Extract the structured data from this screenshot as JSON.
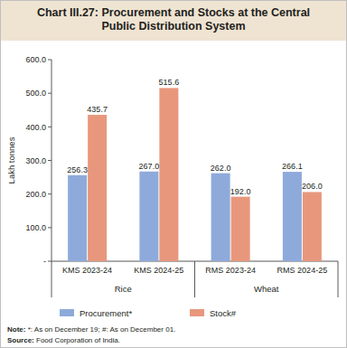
{
  "chart_data": {
    "type": "bar",
    "title": "Chart III.27: Procurement and Stocks at the Central Public Distribution System",
    "y_label": "Lakh tonnes",
    "categories": [
      "KMS 2023-24",
      "KMS 2024-25",
      "RMS 2023-24",
      "RMS 2024-25"
    ],
    "category_groups": [
      "Rice",
      "Rice",
      "Wheat",
      "Wheat"
    ],
    "series": [
      {
        "name": "Procurement*",
        "color": "#8eaadb",
        "values": [
          256.3,
          267.0,
          262.0,
          266.1
        ],
        "value_labels": [
          "256.3",
          "267.0",
          "262.0",
          "266.1"
        ]
      },
      {
        "name": "Stock#",
        "color": "#e8977c",
        "values": [
          435.7,
          515.6,
          192.0,
          206.0
        ],
        "value_labels": [
          "435.7",
          "515.6",
          "192.0",
          "206.0"
        ]
      }
    ],
    "ylim": [
      0,
      600
    ],
    "yticks": [
      {
        "value": 0,
        "label": "-"
      },
      {
        "value": 100,
        "label": "100.0"
      },
      {
        "value": 200,
        "label": "200.0"
      },
      {
        "value": 300,
        "label": "300.0"
      },
      {
        "value": 400,
        "label": "400.0"
      },
      {
        "value": 500,
        "label": "500.0"
      },
      {
        "value": 600,
        "label": "600.0"
      }
    ],
    "grid": false,
    "data_labels": true,
    "legend": "bottom",
    "note": "Note: *: As on December 19; #: As on December 01.",
    "source": "Source: Food Corporation of India."
  }
}
